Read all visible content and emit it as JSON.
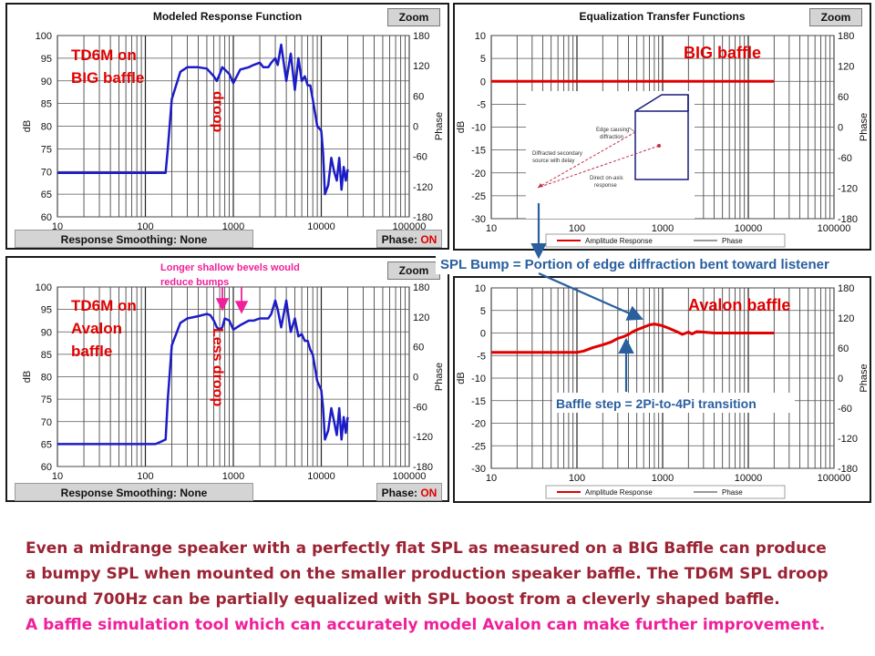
{
  "colors": {
    "response_blue": "#1c1cc8",
    "eq_red": "#e00000",
    "annotation_red": "#e00000",
    "annotation_magenta": "#f0209a",
    "annotation_blue": "#2a5f9e",
    "caption_maroon": "#9b2434"
  },
  "panels": {
    "top_left": {
      "title": "Modeled Response Function",
      "zoom": "Zoom",
      "smoothing": "Response Smoothing: None",
      "phase_label": "Phase:",
      "phase_value": "ON",
      "label_line1": "TD6M on",
      "label_line2": "BIG baffle",
      "vertical_note": "droop"
    },
    "bottom_left": {
      "zoom": "Zoom",
      "smoothing": "Response Smoothing: None",
      "phase_label": "Phase:",
      "phase_value": "ON",
      "label_line1": "TD6M on",
      "label_line2": "Avalon",
      "label_line3": "baffle",
      "vertical_note": "Less droop",
      "bevel_note_line1": "Longer shallow bevels would",
      "bevel_note_line2": "reduce bumps"
    },
    "top_right": {
      "title": "Equalization Transfer Functions",
      "zoom": "Zoom",
      "label": "BIG baffle",
      "legend_amplitude": "Amplitude Response",
      "legend_phase": "Phase",
      "inset": {
        "edge": "Edge causing",
        "edge2": "diffraction",
        "secondary": "Diffracted secondary",
        "secondary2": "source with delay",
        "direct": "Direct on-axis",
        "direct2": "response"
      }
    },
    "bottom_right": {
      "label": "Avalon baffle",
      "legend_amplitude": "Amplitude Response",
      "legend_phase": "Phase"
    }
  },
  "annotations": {
    "spl_bump": "SPL Bump = Portion of edge diffraction bent toward listener",
    "baffle_step": "Baffle step = 2Pi-to-4Pi transition"
  },
  "caption": {
    "line1": "Even a midrange speaker with a perfectly flat SPL as measured on a BIG Baffle can produce",
    "line2": "a bumpy SPL when mounted on the smaller production speaker baffle. The TD6M SPL droop",
    "line3": "around 700Hz can be partially equalized with SPL boost from a cleverly shaped baffle.",
    "line4": "A baffle simulation tool which can accurately model Avalon can make further improvement."
  },
  "chart_data": [
    {
      "type": "line",
      "title": "Modeled Response Function",
      "xlabel": "",
      "ylabel": "dB",
      "y2label": "Phase",
      "x_scale": "log",
      "xlim": [
        10,
        100000
      ],
      "ylim": [
        60,
        100
      ],
      "y2lim": [
        -180,
        180
      ],
      "x_ticks": [
        "10",
        "100",
        "1000",
        "10000",
        "100000"
      ],
      "y_ticks": [
        60,
        65,
        70,
        75,
        80,
        85,
        90,
        95,
        100
      ],
      "y2_ticks": [
        -180,
        -120,
        -60,
        0,
        60,
        120,
        180
      ],
      "series": [
        {
          "color": "#1c1cc8",
          "x": [
            10,
            170,
            180,
            200,
            250,
            300,
            400,
            500,
            600,
            650,
            700,
            750,
            800,
            900,
            1000,
            1200,
            1500,
            1700,
            2000,
            2200,
            2500,
            2700,
            3000,
            3200,
            3500,
            4000,
            4500,
            5000,
            5500,
            6000,
            6500,
            7000,
            7500,
            8000,
            9000,
            10000,
            10500,
            11000,
            12000,
            13000,
            14000,
            15000,
            16000,
            17000,
            18000,
            19000,
            20000
          ],
          "y": [
            69.7,
            69.7,
            75,
            86,
            92,
            93,
            93,
            92.7,
            91,
            90,
            91.5,
            93,
            92.5,
            91.5,
            89.5,
            92.5,
            93,
            93.5,
            94,
            93,
            93,
            94,
            95,
            93.5,
            98,
            90,
            96,
            88,
            95,
            90,
            91,
            89,
            89,
            86,
            80,
            79,
            74,
            65,
            67,
            73,
            70,
            68,
            73,
            66,
            71,
            68,
            70.5
          ]
        }
      ]
    },
    {
      "type": "line",
      "title": "",
      "xlabel": "",
      "ylabel": "dB",
      "y2label": "Phase",
      "x_scale": "log",
      "xlim": [
        10,
        100000
      ],
      "ylim": [
        60,
        100
      ],
      "y2lim": [
        -180,
        180
      ],
      "x_ticks": [
        "10",
        "100",
        "1000",
        "10000",
        "100000"
      ],
      "y_ticks": [
        60,
        65,
        70,
        75,
        80,
        85,
        90,
        95,
        100
      ],
      "y2_ticks": [
        -180,
        -120,
        -60,
        0,
        60,
        120,
        180
      ],
      "series": [
        {
          "color": "#1c1cc8",
          "x": [
            10,
            130,
            150,
            170,
            180,
            200,
            250,
            300,
            400,
            500,
            550,
            600,
            650,
            700,
            750,
            800,
            900,
            1000,
            1200,
            1500,
            1700,
            2000,
            2200,
            2500,
            2700,
            3000,
            3200,
            3500,
            4000,
            4500,
            5000,
            5500,
            6000,
            6500,
            7000,
            7500,
            8000,
            9000,
            10000,
            10500,
            11000,
            12000,
            13000,
            14000,
            15000,
            16000,
            17000,
            18000,
            19000,
            20000
          ],
          "y": [
            65,
            65,
            65.5,
            66,
            75,
            87,
            92,
            93,
            93.5,
            94,
            93.7,
            92.5,
            91,
            90.5,
            91,
            93,
            92.5,
            90.5,
            91.5,
            92.5,
            92.5,
            93,
            93,
            93,
            94,
            97,
            95,
            91,
            97,
            90,
            93,
            89,
            89.5,
            88,
            88,
            86,
            85,
            79,
            77,
            73,
            66,
            68,
            73,
            70,
            67,
            73,
            66,
            71,
            67.5,
            71
          ]
        }
      ]
    },
    {
      "type": "line",
      "title": "Equalization Transfer Functions",
      "xlabel": "",
      "ylabel": "dB",
      "y2label": "Phase",
      "x_scale": "log",
      "xlim": [
        10,
        100000
      ],
      "ylim": [
        -30,
        10
      ],
      "y2lim": [
        -180,
        180
      ],
      "x_ticks": [
        "10",
        "100",
        "1000",
        "10000",
        "100000"
      ],
      "y_ticks": [
        -30,
        -25,
        -20,
        -15,
        -10,
        -5,
        0,
        5,
        10
      ],
      "y2_ticks": [
        -180,
        -120,
        -60,
        0,
        60,
        120,
        180
      ],
      "legend": [
        "Amplitude Response",
        "Phase"
      ],
      "series": [
        {
          "name": "Amplitude Response",
          "color": "#e00000",
          "x": [
            10,
            20000
          ],
          "y": [
            0,
            0
          ]
        }
      ]
    },
    {
      "type": "line",
      "title": "",
      "xlabel": "",
      "ylabel": "dB",
      "y2label": "Phase",
      "x_scale": "log",
      "xlim": [
        10,
        100000
      ],
      "ylim": [
        -30,
        10
      ],
      "y2lim": [
        -180,
        180
      ],
      "x_ticks": [
        "10",
        "100",
        "1000",
        "10000",
        "100000"
      ],
      "y_ticks": [
        -30,
        -25,
        -20,
        -15,
        -10,
        -5,
        0,
        5,
        10
      ],
      "y2_ticks": [
        -180,
        -120,
        -60,
        0,
        60,
        120,
        180
      ],
      "legend": [
        "Amplitude Response",
        "Phase"
      ],
      "series": [
        {
          "name": "Amplitude Response",
          "color": "#e00000",
          "x": [
            10,
            100,
            120,
            150,
            200,
            250,
            300,
            350,
            400,
            450,
            500,
            600,
            700,
            800,
            900,
            1000,
            1200,
            1500,
            1700,
            2000,
            2200,
            2500,
            3000,
            4000,
            5000,
            7000,
            10000,
            15000,
            20000
          ],
          "y": [
            -4.3,
            -4.3,
            -4,
            -3.3,
            -2.6,
            -2,
            -1.2,
            -0.8,
            -0.3,
            0.3,
            0.7,
            1.3,
            1.8,
            2,
            1.8,
            1.6,
            1,
            0.2,
            -0.3,
            0.2,
            -0.2,
            0.3,
            0.2,
            0,
            0,
            0,
            0,
            0,
            0
          ]
        }
      ]
    }
  ]
}
